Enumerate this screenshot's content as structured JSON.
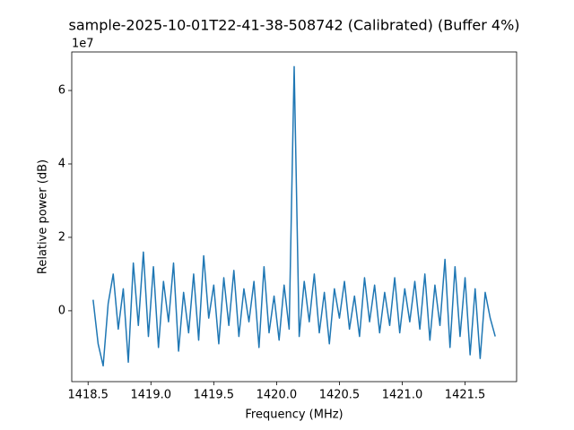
{
  "chart_data": {
    "type": "line",
    "title": "sample-2025-10-01T22-41-38-508742 (Calibrated) (Buffer 4%)",
    "x_label": "Frequency (MHz)",
    "y_label": "Relative power (dB)",
    "y_offset_label": "1e7",
    "color": "#1f77b4",
    "x": [
      1418.54,
      1418.58,
      1418.62,
      1418.66,
      1418.7,
      1418.74,
      1418.78,
      1418.82,
      1418.86,
      1418.9,
      1418.94,
      1418.98,
      1419.02,
      1419.06,
      1419.1,
      1419.14,
      1419.18,
      1419.22,
      1419.26,
      1419.3,
      1419.34,
      1419.38,
      1419.42,
      1419.46,
      1419.5,
      1419.54,
      1419.58,
      1419.62,
      1419.66,
      1419.7,
      1419.74,
      1419.78,
      1419.82,
      1419.86,
      1419.9,
      1419.94,
      1419.98,
      1420.02,
      1420.06,
      1420.1,
      1420.14,
      1420.18,
      1420.22,
      1420.26,
      1420.3,
      1420.34,
      1420.38,
      1420.42,
      1420.46,
      1420.5,
      1420.54,
      1420.58,
      1420.62,
      1420.66,
      1420.7,
      1420.74,
      1420.78,
      1420.82,
      1420.86,
      1420.9,
      1420.94,
      1420.98,
      1421.02,
      1421.06,
      1421.1,
      1421.14,
      1421.18,
      1421.22,
      1421.26,
      1421.3,
      1421.34,
      1421.38,
      1421.42,
      1421.46,
      1421.5,
      1421.54,
      1421.58,
      1421.62,
      1421.66,
      1421.7,
      1421.74
    ],
    "values": [
      3000000.0,
      -9000000.0,
      -15000000.0,
      2000000.0,
      10000000.0,
      -5000000.0,
      6000000.0,
      -14000000.0,
      13000000.0,
      -4000000.0,
      16000000.0,
      -7000000.0,
      12000000.0,
      -10000000.0,
      8000000.0,
      -3000000.0,
      13000000.0,
      -11000000.0,
      5000000.0,
      -6000000.0,
      10000000.0,
      -8000000.0,
      15000000.0,
      -2000000.0,
      7000000.0,
      -9000000.0,
      9000000.0,
      -4000000.0,
      11000000.0,
      -7000000.0,
      6000000.0,
      -3000000.0,
      8000000.0,
      -10000000.0,
      12000000.0,
      -6000000.0,
      4000000.0,
      -8000000.0,
      7000000.0,
      -5000000.0,
      66500000.0,
      -7000000.0,
      8000000.0,
      -3000000.0,
      10000000.0,
      -6000000.0,
      5000000.0,
      -9000000.0,
      6000000.0,
      -2000000.0,
      8000000.0,
      -5000000.0,
      4000000.0,
      -7000000.0,
      9000000.0,
      -3000000.0,
      7000000.0,
      -6000000.0,
      5000000.0,
      -4000000.0,
      9000000.0,
      -6000000.0,
      6000000.0,
      -3000000.0,
      8000000.0,
      -5000000.0,
      10000000.0,
      -8000000.0,
      7000000.0,
      -4000000.0,
      14000000.0,
      -10000000.0,
      12000000.0,
      -7000000.0,
      9000000.0,
      -12000000.0,
      6000000.0,
      -13000000.0,
      5000000.0,
      -2000000.0,
      -7000000.0
    ],
    "xlim": [
      1418.37,
      1421.91
    ],
    "ylim": [
      -19300000.0,
      70500000.0
    ],
    "xticks": [
      {
        "value": 1418.5,
        "label": "1418.5"
      },
      {
        "value": 1419.0,
        "label": "1419.0"
      },
      {
        "value": 1419.5,
        "label": "1419.5"
      },
      {
        "value": 1420.0,
        "label": "1420.0"
      },
      {
        "value": 1420.5,
        "label": "1420.5"
      },
      {
        "value": 1421.0,
        "label": "1421.0"
      },
      {
        "value": 1421.5,
        "label": "1421.5"
      }
    ],
    "yticks": [
      0,
      {
        "value": 20000000.0,
        "label": "2"
      },
      {
        "value": 40000000.0,
        "label": "4"
      },
      {
        "value": 60000000.0,
        "label": "6"
      }
    ]
  }
}
